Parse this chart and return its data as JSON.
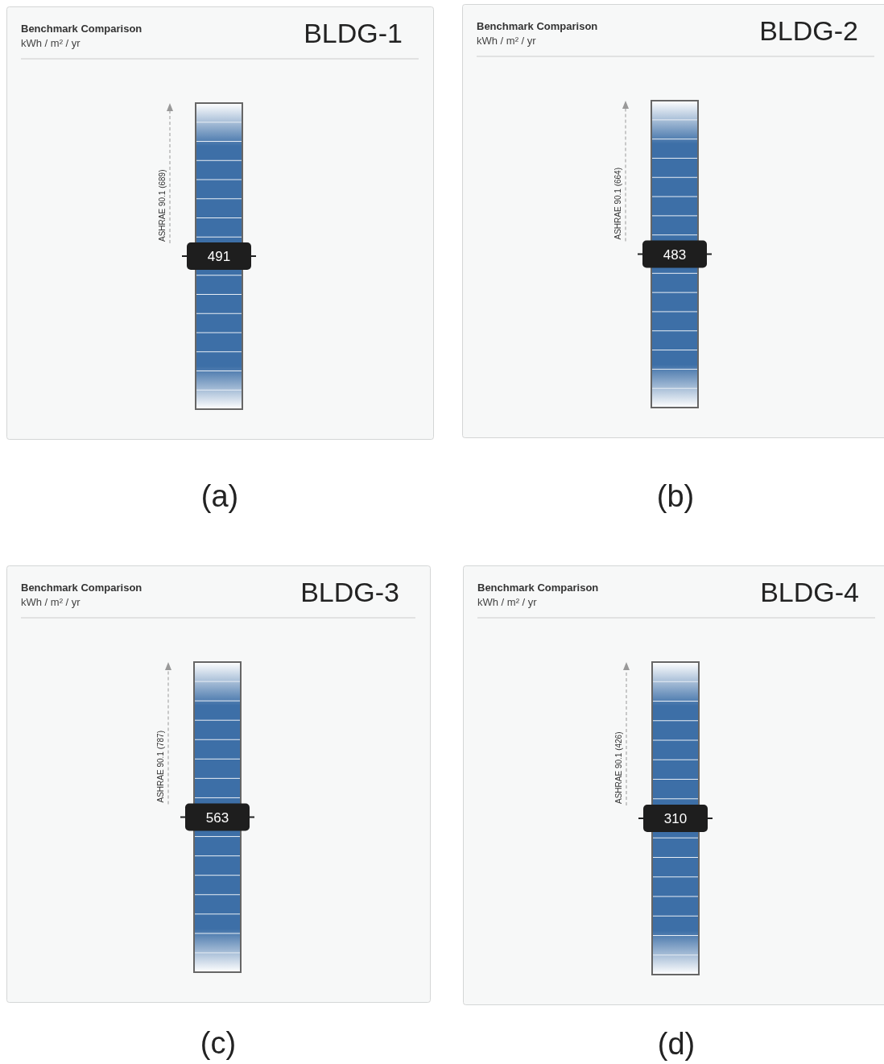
{
  "chart_data": [
    {
      "type": "other",
      "title": "Benchmark Comparison",
      "subtitle": "kWh / m² / yr",
      "categories": [
        "BLDG-1"
      ],
      "values": [
        491
      ],
      "data_labels": true,
      "color": "#1e1e1e",
      "annotations": [
        "ASHRAE 90.1 (689)",
        "(a)"
      ]
    },
    {
      "type": "other",
      "title": "Benchmark Comparison",
      "subtitle": "kWh / m² / yr",
      "categories": [
        "BLDG-2"
      ],
      "values": [
        483
      ],
      "data_labels": true,
      "color": "#1e1e1e",
      "annotations": [
        "ASHRAE 90.1 (664)",
        "(b)"
      ]
    },
    {
      "type": "other",
      "title": "Benchmark Comparison",
      "subtitle": "kWh / m² / yr",
      "categories": [
        "BLDG-3"
      ],
      "values": [
        563
      ],
      "data_labels": true,
      "color": "#1e1e1e",
      "annotations": [
        "ASHRAE 90.1 (787)",
        "(c)"
      ]
    },
    {
      "type": "other",
      "title": "Benchmark Comparison",
      "subtitle": "kWh / m² / yr",
      "categories": [
        "BLDG-4"
      ],
      "values": [
        310
      ],
      "data_labels": true,
      "color": "#1e1e1e",
      "annotations": [
        "ASHRAE 90.1 (426)",
        "(d)"
      ]
    }
  ]
}
